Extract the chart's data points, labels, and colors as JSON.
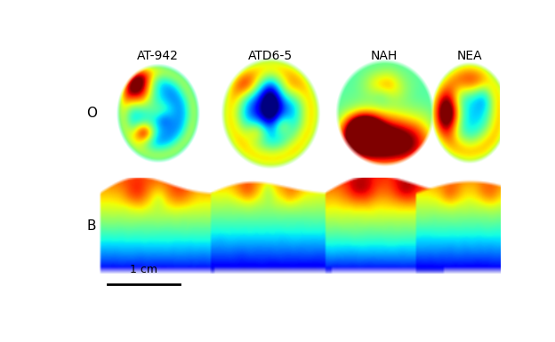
{
  "labels_top": [
    "AT-942",
    "ATD6-5",
    "NAH",
    "NEA"
  ],
  "label_O": "O",
  "label_B": "B",
  "scale_bar_label": "1 cm",
  "background_color": "#ffffff",
  "label_fontsize": 10,
  "scale_fontsize": 9,
  "fig_width": 6.24,
  "fig_height": 3.85,
  "dpi": 100
}
